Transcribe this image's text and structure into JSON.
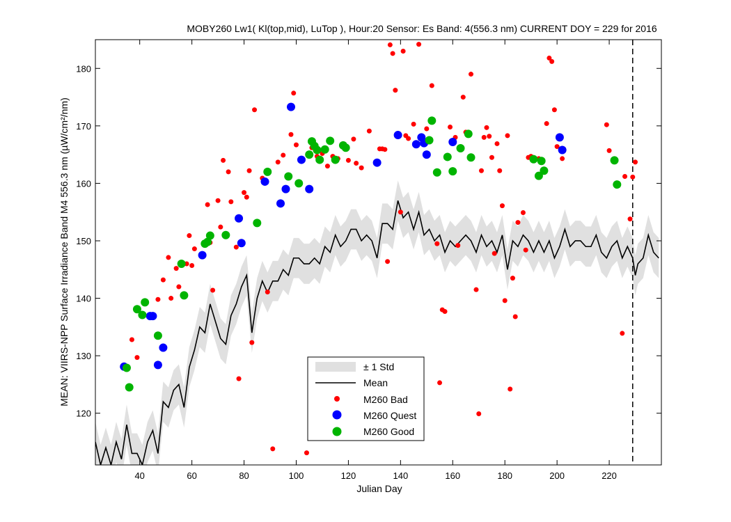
{
  "chart_data": {
    "type": "scatter",
    "title": "MOBY260   Lw1( Kl(top,mid), LuTop ),   Hour:20 Sensor: Es Band: 4(556.3 nm)   CURRENT DOY = 229 for 2016",
    "xlabel": "Julian Day",
    "ylabel": "MEAN: VIIRS-NPP Surface Irradiance Band M4 556.3 nm (µW/cm²/nm)",
    "xlim": [
      23,
      240
    ],
    "ylim": [
      111,
      185
    ],
    "xticks": [
      40,
      60,
      80,
      100,
      120,
      140,
      160,
      180,
      200,
      220
    ],
    "yticks": [
      120,
      130,
      140,
      150,
      160,
      170,
      180
    ],
    "current_doy": 229,
    "legend": {
      "placement": "bottom-center",
      "entries": [
        "± 1 Std",
        "Mean",
        "M260 Bad",
        "M260 Quest",
        "M260 Good"
      ]
    },
    "colors": {
      "bad": "#ff0000",
      "quest": "#0000ff",
      "good": "#00b400",
      "std": "#e0e0e0",
      "mean": "#000000"
    },
    "mean_points": [
      [
        23,
        115
      ],
      [
        25,
        111
      ],
      [
        27,
        114
      ],
      [
        29,
        111
      ],
      [
        31,
        115
      ],
      [
        33,
        112
      ],
      [
        35,
        118
      ],
      [
        37,
        113
      ],
      [
        39,
        113
      ],
      [
        41,
        111
      ],
      [
        43,
        115
      ],
      [
        45,
        117
      ],
      [
        47,
        113
      ],
      [
        49,
        122
      ],
      [
        51,
        121
      ],
      [
        53,
        124
      ],
      [
        55,
        125
      ],
      [
        57,
        121
      ],
      [
        59,
        128
      ],
      [
        61,
        131
      ],
      [
        63,
        135
      ],
      [
        65,
        134
      ],
      [
        67,
        139
      ],
      [
        69,
        136
      ],
      [
        71,
        133
      ],
      [
        73,
        132
      ],
      [
        75,
        137
      ],
      [
        77,
        139
      ],
      [
        79,
        142
      ],
      [
        81,
        144
      ],
      [
        83,
        134
      ],
      [
        85,
        140
      ],
      [
        87,
        143
      ],
      [
        89,
        141
      ],
      [
        91,
        143
      ],
      [
        93,
        143
      ],
      [
        95,
        145
      ],
      [
        97,
        144
      ],
      [
        99,
        147
      ],
      [
        101,
        147
      ],
      [
        103,
        146
      ],
      [
        105,
        146
      ],
      [
        107,
        147
      ],
      [
        109,
        146
      ],
      [
        111,
        149
      ],
      [
        113,
        148
      ],
      [
        115,
        151
      ],
      [
        117,
        149
      ],
      [
        119,
        150
      ],
      [
        121,
        152
      ],
      [
        123,
        152
      ],
      [
        125,
        150
      ],
      [
        127,
        151
      ],
      [
        129,
        150
      ],
      [
        131,
        147
      ],
      [
        133,
        153
      ],
      [
        135,
        153
      ],
      [
        137,
        152
      ],
      [
        139,
        157
      ],
      [
        141,
        154
      ],
      [
        143,
        155
      ],
      [
        145,
        152
      ],
      [
        147,
        155
      ],
      [
        149,
        151
      ],
      [
        151,
        152
      ],
      [
        153,
        150
      ],
      [
        155,
        151
      ],
      [
        157,
        148
      ],
      [
        159,
        150
      ],
      [
        161,
        149
      ],
      [
        163,
        150
      ],
      [
        165,
        151
      ],
      [
        167,
        150
      ],
      [
        169,
        148
      ],
      [
        171,
        151
      ],
      [
        173,
        149
      ],
      [
        175,
        150
      ],
      [
        177,
        148
      ],
      [
        179,
        151
      ],
      [
        181,
        145
      ],
      [
        183,
        150
      ],
      [
        185,
        149
      ],
      [
        187,
        151
      ],
      [
        189,
        150
      ],
      [
        191,
        148
      ],
      [
        193,
        150
      ],
      [
        195,
        148
      ],
      [
        197,
        150
      ],
      [
        199,
        147
      ],
      [
        201,
        149
      ],
      [
        203,
        152
      ],
      [
        205,
        149
      ],
      [
        207,
        150
      ],
      [
        209,
        150
      ],
      [
        211,
        149
      ],
      [
        213,
        149
      ],
      [
        215,
        151
      ],
      [
        217,
        148
      ],
      [
        219,
        147
      ],
      [
        221,
        149
      ],
      [
        223,
        150
      ],
      [
        225,
        147
      ],
      [
        227,
        149
      ],
      [
        229,
        147
      ],
      [
        230,
        144
      ],
      [
        231,
        146
      ],
      [
        233,
        147
      ],
      [
        235,
        151
      ],
      [
        237,
        148
      ],
      [
        239,
        147
      ]
    ],
    "std_half_width": 3.5,
    "series": [
      {
        "name": "M260 Bad",
        "points": [
          [
            37,
            132.8
          ],
          [
            39,
            129.7
          ],
          [
            47,
            139.8
          ],
          [
            49,
            143.2
          ],
          [
            51,
            147.1
          ],
          [
            52,
            140.0
          ],
          [
            54,
            145.2
          ],
          [
            55,
            142.0
          ],
          [
            58,
            146.0
          ],
          [
            59,
            150.9
          ],
          [
            60,
            145.7
          ],
          [
            61,
            148.6
          ],
          [
            66,
            156.3
          ],
          [
            67,
            149.7
          ],
          [
            68,
            141.4
          ],
          [
            70,
            157.0
          ],
          [
            71,
            152.4
          ],
          [
            72,
            164.0
          ],
          [
            74,
            162.0
          ],
          [
            75,
            156.8
          ],
          [
            77,
            148.9
          ],
          [
            78,
            126.0
          ],
          [
            80,
            158.4
          ],
          [
            81,
            157.6
          ],
          [
            82,
            162.2
          ],
          [
            83,
            132.3
          ],
          [
            84,
            172.8
          ],
          [
            87,
            160.9
          ],
          [
            89,
            141.1
          ],
          [
            91,
            113.8
          ],
          [
            93,
            163.7
          ],
          [
            95,
            164.9
          ],
          [
            98,
            168.5
          ],
          [
            99,
            175.7
          ],
          [
            100,
            166.7
          ],
          [
            104,
            113.1
          ],
          [
            106,
            166.2
          ],
          [
            108,
            164.7
          ],
          [
            110,
            165.2
          ],
          [
            112,
            163.0
          ],
          [
            114,
            164.7
          ],
          [
            116,
            164.3
          ],
          [
            118,
            166.8
          ],
          [
            120,
            164.0
          ],
          [
            122,
            167.7
          ],
          [
            123,
            163.5
          ],
          [
            125,
            162.7
          ],
          [
            128,
            169.1
          ],
          [
            132,
            166.0
          ],
          [
            133,
            166.0
          ],
          [
            134,
            165.9
          ],
          [
            135,
            146.4
          ],
          [
            136,
            184.1
          ],
          [
            137,
            182.6
          ],
          [
            138,
            176.2
          ],
          [
            139,
            168.5
          ],
          [
            140,
            155.0
          ],
          [
            141,
            183.0
          ],
          [
            142,
            168.3
          ],
          [
            143,
            167.8
          ],
          [
            145,
            170.3
          ],
          [
            147,
            184.2
          ],
          [
            150,
            169.5
          ],
          [
            152,
            177.0
          ],
          [
            154,
            149.5
          ],
          [
            155,
            125.3
          ],
          [
            156,
            138.0
          ],
          [
            157,
            137.7
          ],
          [
            159,
            169.8
          ],
          [
            161,
            168.0
          ],
          [
            162,
            149.2
          ],
          [
            164,
            175.0
          ],
          [
            165,
            168.9
          ],
          [
            167,
            179.0
          ],
          [
            169,
            141.5
          ],
          [
            170,
            119.9
          ],
          [
            171,
            162.2
          ],
          [
            172,
            168.0
          ],
          [
            173,
            169.7
          ],
          [
            174,
            168.2
          ],
          [
            175,
            164.5
          ],
          [
            176,
            147.8
          ],
          [
            177,
            166.9
          ],
          [
            178,
            162.2
          ],
          [
            179,
            156.1
          ],
          [
            180,
            139.6
          ],
          [
            181,
            168.3
          ],
          [
            182,
            124.2
          ],
          [
            183,
            143.5
          ],
          [
            184,
            136.8
          ],
          [
            185,
            153.2
          ],
          [
            187,
            154.9
          ],
          [
            188,
            148.4
          ],
          [
            189,
            164.5
          ],
          [
            190,
            164.7
          ],
          [
            191,
            164.5
          ],
          [
            193,
            164.3
          ],
          [
            196,
            170.4
          ],
          [
            197,
            181.8
          ],
          [
            198,
            181.2
          ],
          [
            199,
            172.8
          ],
          [
            200,
            166.4
          ],
          [
            202,
            164.3
          ],
          [
            219,
            170.2
          ],
          [
            220,
            165.7
          ],
          [
            225,
            133.9
          ],
          [
            226,
            161.2
          ],
          [
            228,
            153.8
          ],
          [
            229,
            161.1
          ],
          [
            230,
            163.7
          ]
        ]
      },
      {
        "name": "M260 Quest",
        "points": [
          [
            34,
            128.1
          ],
          [
            44,
            136.9
          ],
          [
            45,
            136.9
          ],
          [
            47,
            128.4
          ],
          [
            49,
            131.4
          ],
          [
            64,
            147.5
          ],
          [
            78,
            153.9
          ],
          [
            79,
            149.6
          ],
          [
            88,
            160.3
          ],
          [
            94,
            156.5
          ],
          [
            96,
            159.0
          ],
          [
            98,
            173.3
          ],
          [
            102,
            164.1
          ],
          [
            105,
            159.0
          ],
          [
            131,
            163.6
          ],
          [
            139,
            168.4
          ],
          [
            146,
            166.8
          ],
          [
            148,
            168.0
          ],
          [
            149,
            167.0
          ],
          [
            150,
            165.0
          ],
          [
            160,
            167.2
          ],
          [
            201,
            168.0
          ],
          [
            202,
            165.8
          ]
        ]
      },
      {
        "name": "M260 Good",
        "points": [
          [
            35,
            127.9
          ],
          [
            36,
            124.5
          ],
          [
            39,
            138.1
          ],
          [
            41,
            137.1
          ],
          [
            42,
            139.3
          ],
          [
            47,
            133.5
          ],
          [
            56,
            146.0
          ],
          [
            57,
            140.5
          ],
          [
            65,
            149.5
          ],
          [
            66,
            149.8
          ],
          [
            67,
            150.9
          ],
          [
            73,
            151.0
          ],
          [
            85,
            153.1
          ],
          [
            89,
            162.0
          ],
          [
            97,
            161.2
          ],
          [
            101,
            160.0
          ],
          [
            105,
            165.0
          ],
          [
            106,
            167.3
          ],
          [
            107,
            166.5
          ],
          [
            108,
            165.8
          ],
          [
            109,
            164.1
          ],
          [
            111,
            165.9
          ],
          [
            113,
            167.4
          ],
          [
            115,
            164.1
          ],
          [
            118,
            166.6
          ],
          [
            119,
            166.2
          ],
          [
            151,
            167.5
          ],
          [
            152,
            170.9
          ],
          [
            154,
            161.9
          ],
          [
            158,
            164.6
          ],
          [
            160,
            162.1
          ],
          [
            163,
            166.1
          ],
          [
            166,
            168.6
          ],
          [
            167,
            164.5
          ],
          [
            191,
            164.2
          ],
          [
            193,
            161.3
          ],
          [
            194,
            163.9
          ],
          [
            195,
            162.2
          ],
          [
            222,
            164.0
          ],
          [
            223,
            159.8
          ]
        ]
      }
    ]
  }
}
